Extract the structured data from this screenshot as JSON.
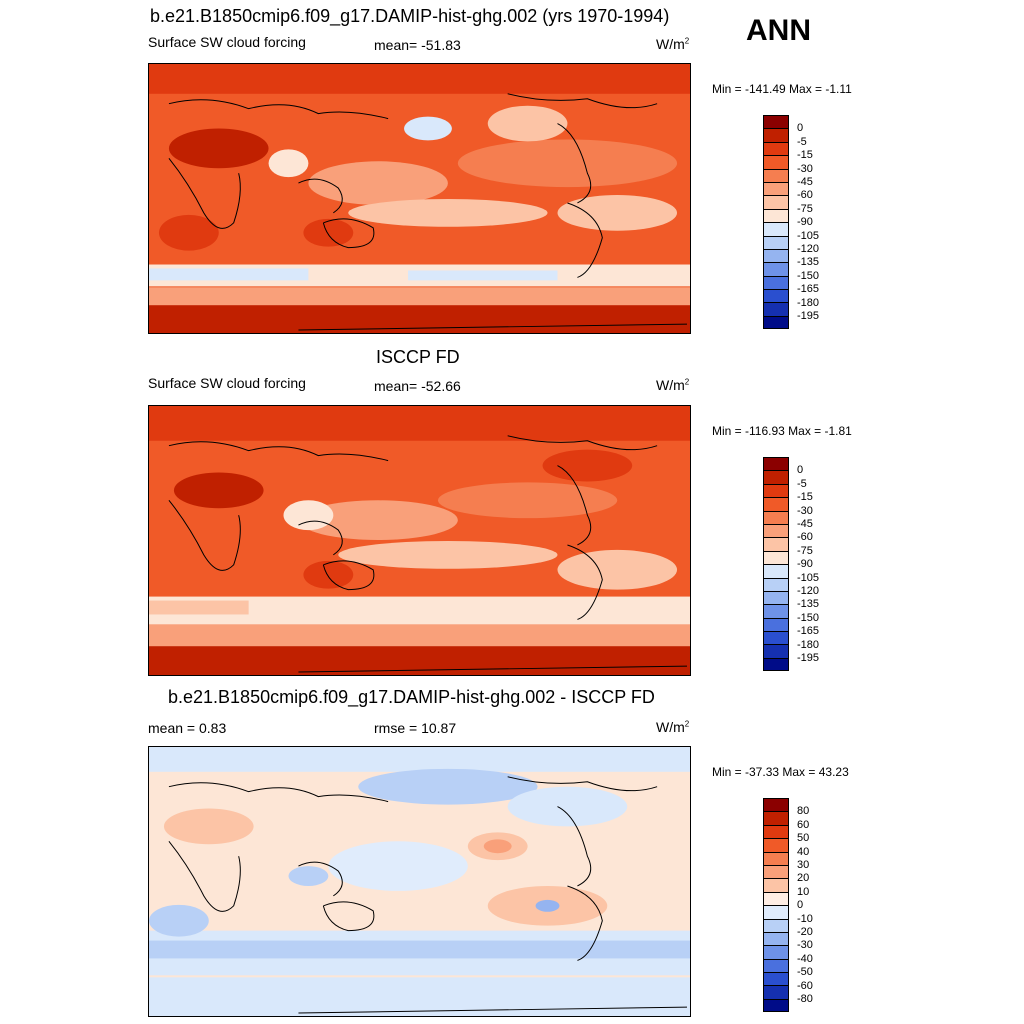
{
  "season": "ANN",
  "panel1": {
    "title": "b.e21.B1850cmip6.f09_g17.DAMIP-hist-ghg.002 (yrs 1970-1994)",
    "left_label": "Surface SW cloud forcing",
    "mean_label": "mean= -51.83",
    "units_base": "W/m",
    "units_sup": "2",
    "minmax": "Min = -141.49 Max =  -1.11",
    "colorbar": {
      "labels": [
        "0",
        "-5",
        "-15",
        "-30",
        "-45",
        "-60",
        "-75",
        "-90",
        "-105",
        "-120",
        "-135",
        "-150",
        "-165",
        "-180",
        "-195"
      ],
      "colors": [
        "#8b0000",
        "#c02000",
        "#e03a10",
        "#f05a28",
        "#f57e50",
        "#f9a07a",
        "#fcc4a6",
        "#fde6d6",
        "#d9e8fb",
        "#b8d0f6",
        "#95b4f0",
        "#6e92e8",
        "#4a70de",
        "#2a4fcf",
        "#1530b0",
        "#000c88"
      ]
    }
  },
  "panel2": {
    "title": "ISCCP FD",
    "left_label": "Surface SW cloud forcing",
    "mean_label": "mean= -52.66",
    "units_base": "W/m",
    "units_sup": "2",
    "minmax": "Min = -116.93 Max =  -1.81",
    "colorbar": {
      "labels": [
        "0",
        "-5",
        "-15",
        "-30",
        "-45",
        "-60",
        "-75",
        "-90",
        "-105",
        "-120",
        "-135",
        "-150",
        "-165",
        "-180",
        "-195"
      ],
      "colors": [
        "#8b0000",
        "#c02000",
        "#e03a10",
        "#f05a28",
        "#f57e50",
        "#f9a07a",
        "#fcc4a6",
        "#fde6d6",
        "#d9e8fb",
        "#b8d0f6",
        "#95b4f0",
        "#6e92e8",
        "#4a70de",
        "#2a4fcf",
        "#1530b0",
        "#000c88"
      ]
    }
  },
  "panel3": {
    "title": "b.e21.B1850cmip6.f09_g17.DAMIP-hist-ghg.002 - ISCCP FD",
    "mean_label": "mean =   0.83",
    "rmse_label": "rmse =  10.87",
    "units_base": "W/m",
    "units_sup": "2",
    "minmax": "Min = -37.33 Max =  43.23",
    "colorbar": {
      "labels": [
        "80",
        "60",
        "50",
        "40",
        "30",
        "20",
        "10",
        "0",
        "-10",
        "-20",
        "-30",
        "-40",
        "-50",
        "-60",
        "-80"
      ],
      "colors": [
        "#8b0000",
        "#c02000",
        "#e03a10",
        "#f05a28",
        "#f57e50",
        "#f9a07a",
        "#fcc4a6",
        "#ffeee4",
        "#e0ecfc",
        "#b8d0f6",
        "#95b4f0",
        "#6e92e8",
        "#4a70de",
        "#2a4fcf",
        "#1530b0",
        "#000c88"
      ]
    }
  }
}
